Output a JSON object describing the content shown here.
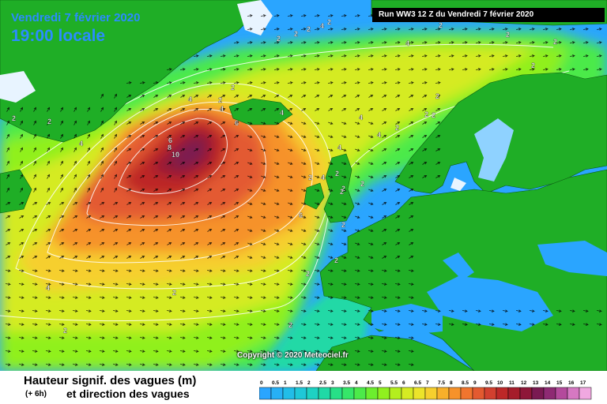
{
  "header": {
    "date": "Vendredi 7 février 2020",
    "time": "19:00 locale",
    "run": "Run WW3 12 Z du Vendredi 7 février 2020"
  },
  "copyright": "Copyright © 2020 Meteociel.fr",
  "legend": {
    "title": "Hauteur signif. des vagues (m)",
    "offset": "(+ 6h)",
    "subtitle": "et direction des vagues",
    "ticks": [
      "0",
      "0.5",
      "1",
      "1.5",
      "2",
      "2.5",
      "3",
      "3.5",
      "4",
      "4.5",
      "5",
      "5.5",
      "6",
      "6.5",
      "7",
      "7.5",
      "8",
      "8.5",
      "9",
      "9.5",
      "10",
      "11",
      "12",
      "13",
      "14",
      "15",
      "16",
      "17"
    ],
    "colors": [
      "#2aa5ff",
      "#27b0f5",
      "#22bde8",
      "#1fc8d8",
      "#1ed2c3",
      "#20d9a6",
      "#27e087",
      "#36e669",
      "#4cea4a",
      "#6cee2e",
      "#90f01f",
      "#b4ee1e",
      "#d5eb22",
      "#ece42a",
      "#f6cf2e",
      "#f8b02a",
      "#f6922a",
      "#f1752e",
      "#e35a30",
      "#d2402f",
      "#bd2828",
      "#a51d2a",
      "#8e1738",
      "#7a1a52",
      "#8e2a73",
      "#b44a9c",
      "#d678c2",
      "#f0a8e0"
    ]
  },
  "map_colors": {
    "land": "#1fae26",
    "sea_low": "#2aa5ff",
    "ice": "#e8f4ff"
  },
  "contour_labels": [
    {
      "text": "2"
    },
    {
      "text": "2"
    },
    {
      "text": "2"
    },
    {
      "text": "2"
    },
    {
      "text": "4"
    },
    {
      "text": "2"
    },
    {
      "text": "2"
    },
    {
      "text": "2"
    },
    {
      "text": "2"
    },
    {
      "text": "4"
    },
    {
      "text": "2"
    },
    {
      "text": "4"
    },
    {
      "text": "6"
    },
    {
      "text": "4"
    },
    {
      "text": "6"
    },
    {
      "text": "8"
    },
    {
      "text": "10"
    },
    {
      "text": "4"
    },
    {
      "text": "4"
    },
    {
      "text": "4"
    },
    {
      "text": "2"
    },
    {
      "text": "2"
    },
    {
      "text": "6"
    },
    {
      "text": "2"
    },
    {
      "text": "2"
    },
    {
      "text": "2"
    },
    {
      "text": "4"
    },
    {
      "text": "4"
    },
    {
      "text": "2"
    },
    {
      "text": "2"
    },
    {
      "text": "2"
    },
    {
      "text": "2"
    },
    {
      "text": "2"
    },
    {
      "text": "2"
    },
    {
      "text": "4"
    },
    {
      "text": "2"
    },
    {
      "text": "2"
    },
    {
      "text": "2"
    },
    {
      "text": "2"
    },
    {
      "text": "2"
    },
    {
      "text": "4"
    },
    {
      "text": "2"
    },
    {
      "text": "2"
    }
  ]
}
